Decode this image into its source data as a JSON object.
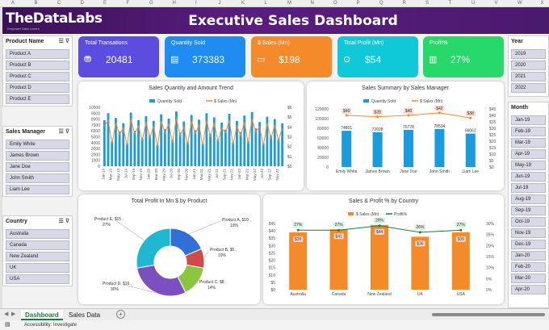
{
  "columns": [
    "A",
    "B",
    "C",
    "D",
    "E",
    "F",
    "G",
    "H",
    "I",
    "J",
    "K",
    "L",
    "M",
    "N",
    "O",
    "P",
    "Q",
    "R",
    "S",
    "T",
    "U",
    "V",
    "W",
    "X"
  ],
  "header": {
    "logo": "TheDataLabs",
    "logo_sub": "Empower Data Lovers",
    "title": "Executive Sales Dashboard"
  },
  "slicers": {
    "product": {
      "title": "Product Name",
      "items": [
        "Product A",
        "Product B",
        "Product C",
        "Product D",
        "Product E"
      ]
    },
    "manager": {
      "title": "Sales Manager",
      "items": [
        "Emily White",
        "James Brown",
        "Jane Doe",
        "John Smith",
        "Liam Lee"
      ]
    },
    "country": {
      "title": "Country",
      "items": [
        "Australia",
        "Canada",
        "New Zealand",
        "UK",
        "USA"
      ]
    },
    "year": {
      "title": "Year",
      "items": [
        "2019",
        "2020",
        "2021",
        "2022"
      ]
    },
    "month": {
      "title": "Month",
      "items": [
        "Jan-19",
        "Feb-19",
        "Mar-19",
        "Apr-19",
        "May-19",
        "Jun-19",
        "Jul-19",
        "Aug-19",
        "Sep-19",
        "Oct-19",
        "Nov-19",
        "Dec-19",
        "Jan-20",
        "Feb-20",
        "Mar-20",
        "Apr-20"
      ]
    }
  },
  "kpis": [
    {
      "label": "Total Transations",
      "value": "20481",
      "color": "#5a4de0"
    },
    {
      "label": "Quantity Sold",
      "value": "373383",
      "color": "#1e8cf0"
    },
    {
      "label": "$ Sales (Mn)",
      "value": "$198",
      "color": "#f58a2a"
    },
    {
      "label": "Total Profit (Mn)",
      "value": "$54",
      "color": "#10c9d8"
    },
    {
      "label": "Profit%",
      "value": "27%",
      "color": "#27d96a"
    }
  ],
  "chart_data": [
    {
      "type": "bar",
      "title": "Sales Quantity and Amount Trend",
      "legend": [
        "Quantity Sold",
        "$ Sales (Mn)"
      ],
      "y_ticks": [
        "10000",
        "9000",
        "8000",
        "7000",
        "6000",
        "5000",
        "4000",
        "3000",
        "2000",
        "1000",
        "0"
      ],
      "y2_ticks": [
        "$6",
        "$5",
        "$4",
        "$3",
        "$2",
        "$1",
        "$0"
      ],
      "ylim": [
        0,
        10000
      ],
      "y2lim": [
        0,
        6
      ],
      "x_ticks": [
        "Jan-19",
        "Mar-19",
        "May-19",
        "Jul-19",
        "Sep-19",
        "Nov-19",
        "Jan-20",
        "Mar-20",
        "May-20",
        "Jul-20",
        "Sep-20",
        "Nov-20",
        "Jan-21",
        "Mar-21",
        "May-21",
        "Jul-21",
        "Sep-21",
        "Nov-21",
        "Jan-22",
        "Mar-22",
        "May-22",
        "Jul-22",
        "Sep-22",
        "Nov-22"
      ],
      "quantity": [
        7800,
        9000,
        4200,
        8200,
        5900,
        7300,
        3900,
        9100,
        6000,
        7800,
        4800,
        8500,
        5300,
        7700,
        3600,
        8800,
        6300,
        8100,
        4500,
        9300,
        5700,
        7600,
        4100,
        8700,
        6100,
        7900,
        3800,
        9000,
        5500,
        8300,
        4600,
        7400,
        6200,
        8900,
        4000,
        7700,
        5800,
        8600,
        4300,
        9200,
        6400,
        7500,
        3900,
        8400,
        5200,
        8000,
        4700,
        7300
      ],
      "sales": [
        4.1,
        4.7,
        2.3,
        4.4,
        3.2,
        3.9,
        2.1,
        4.8,
        3.3,
        4.1,
        2.6,
        4.5,
        2.9,
        4.1,
        2.0,
        4.6,
        3.4,
        4.3,
        2.4,
        4.9,
        3.1,
        4.0,
        2.2,
        4.6,
        3.3,
        4.2,
        2.1,
        4.7,
        3.0,
        4.4,
        2.5,
        3.9,
        3.4,
        4.7,
        2.2,
        4.1,
        3.1,
        4.5,
        2.3,
        4.8,
        3.5,
        4.0,
        2.1,
        4.4,
        2.8,
        4.2,
        2.6,
        3.9
      ]
    },
    {
      "type": "bar",
      "title": "Sales Summary by Sales Manager",
      "legend": [
        "Quantity Sold",
        "$ Sales (Mn)"
      ],
      "categories": [
        "Emily White",
        "James Brown",
        "Jane Doe",
        "John Smith",
        "Liam Lee"
      ],
      "quantity": [
        74801,
        72028,
        76778,
        78534,
        69062
      ],
      "quantity_labels": [
        "74801",
        "72028",
        "76778",
        "78534",
        "69062"
      ],
      "sales": [
        40,
        39,
        40,
        42,
        38
      ],
      "sales_labels": [
        "$40",
        "$39",
        "$40",
        "$42",
        "$38"
      ],
      "y_ticks": [
        "120000",
        "100000",
        "80000",
        "60000",
        "40000",
        "20000",
        "0"
      ],
      "ylim": [
        0,
        120000
      ],
      "y2_ticks": [
        "$45",
        "$40",
        "$35",
        "$30",
        "$25",
        "$20",
        "$15",
        "$10",
        "$5",
        "$0"
      ],
      "y2lim": [
        0,
        45
      ]
    },
    {
      "type": "pie",
      "title": "Total Profit In Mn $ by Product",
      "labels": [
        "Product A, $10 ,",
        "Product B, $5 ,",
        "Product C, $8 ,",
        "Product D, $16 ,",
        "Product E, $15 ,"
      ],
      "pcts": [
        "19%",
        "10%",
        "14%",
        "30%",
        "27%"
      ],
      "values": [
        10,
        5,
        8,
        16,
        15
      ],
      "colors": [
        "#2f6fd6",
        "#d14a4a",
        "#8cc63f",
        "#7b4fbf",
        "#1fb8d2"
      ]
    },
    {
      "type": "bar",
      "title": "Sales & Profit % by Country",
      "legend": [
        "$ Sales (Mn)",
        "Profit%"
      ],
      "categories": [
        "Australia",
        "Canada",
        "New Zealand",
        "UK",
        "USA"
      ],
      "sales": [
        39,
        41,
        44,
        36,
        39
      ],
      "sales_labels": [
        "$39",
        "$41",
        "$44",
        "$36",
        "$39"
      ],
      "profit": [
        27,
        27,
        29,
        26,
        27
      ],
      "profit_labels": [
        "27%",
        "27%",
        "29%",
        "26%",
        "27%"
      ],
      "y_ticks": [
        "$45",
        "$40",
        "$35",
        "$30",
        "$25",
        "$20",
        "$15",
        "$10",
        "$5",
        "$0"
      ],
      "ylim": [
        0,
        45
      ],
      "y2_ticks": [
        "30%",
        "25%",
        "20%",
        "15%",
        "10%",
        "5%",
        "0%"
      ],
      "y2lim": [
        0,
        30
      ]
    }
  ],
  "tabs": [
    "Dashboard",
    "Sales Data"
  ],
  "status": {
    "accessibility": "Accessibility: Investigate",
    "add": "+"
  }
}
